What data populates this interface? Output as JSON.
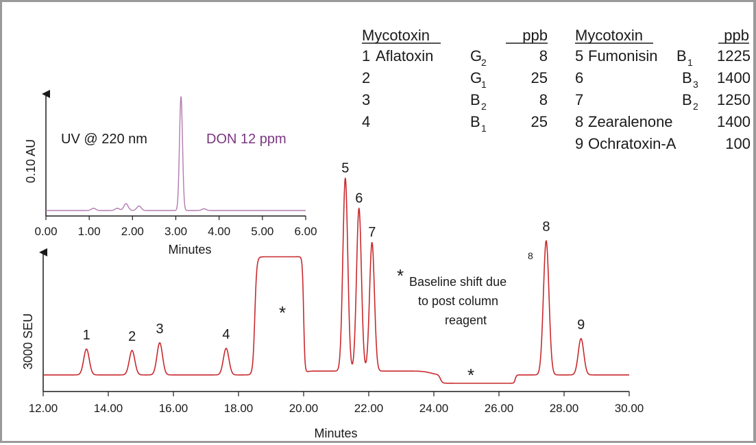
{
  "legend_table": {
    "left": {
      "header_name": "Mycotoxin",
      "header_ppb": "ppb",
      "rows": [
        {
          "num": "1",
          "name": "Aflatoxin",
          "sym": "G",
          "sub": "2",
          "ppb": "8"
        },
        {
          "num": "2",
          "name": "",
          "sym": "G",
          "sub": "1",
          "ppb": "25"
        },
        {
          "num": "3",
          "name": "",
          "sym": "B",
          "sub": "2",
          "ppb": "8"
        },
        {
          "num": "4",
          "name": "",
          "sym": "B",
          "sub": "1",
          "ppb": "25"
        }
      ]
    },
    "right": {
      "header_name": "Mycotoxin",
      "header_ppb": "ppb",
      "rows": [
        {
          "num": "5",
          "name": "Fumonisin",
          "sym": "B",
          "sub": "1",
          "ppb": "1225"
        },
        {
          "num": "6",
          "name": "",
          "sym": "B",
          "sub": "3",
          "ppb": "1400"
        },
        {
          "num": "7",
          "name": "",
          "sym": "B",
          "sub": "2",
          "ppb": "1250"
        },
        {
          "num": "8",
          "name": "Zearalenone",
          "sym": "",
          "sub": "",
          "ppb": "1400"
        },
        {
          "num": "9",
          "name": "Ochratoxin-A",
          "sym": "",
          "sub": "",
          "ppb": "100"
        }
      ]
    }
  },
  "colors": {
    "main_trace": "#c8282c",
    "inset_trace": "#b07ab0",
    "don_label": "#7a3580",
    "axis": "#1a1a1a"
  },
  "chart_data": [
    {
      "type": "line",
      "title": "",
      "xlabel": "Minutes",
      "ylabel": "3000 SEU",
      "xlim": [
        12.0,
        30.0
      ],
      "ylim": [
        0,
        3.1
      ],
      "x_ticks": [
        "12.00",
        "14.00",
        "16.00",
        "18.00",
        "20.00",
        "22.00",
        "24.00",
        "26.00",
        "28.00",
        "30.00"
      ],
      "baseline": 0.12,
      "peaks": [
        {
          "label": "1",
          "rt": 13.33,
          "height": 0.49
        },
        {
          "label": "2",
          "rt": 14.73,
          "height": 0.47
        },
        {
          "label": "3",
          "rt": 15.58,
          "height": 0.58
        },
        {
          "label": "4",
          "rt": 17.62,
          "height": 0.5
        },
        {
          "label": "5",
          "rt": 21.28,
          "height": 2.88
        },
        {
          "label": "6",
          "rt": 21.7,
          "height": 2.45
        },
        {
          "label": "7",
          "rt": 22.1,
          "height": 1.96
        },
        {
          "label": "8",
          "rt": 27.45,
          "height": 2.04
        },
        {
          "label": "9",
          "rt": 28.52,
          "height": 0.64
        }
      ],
      "baseline_shifts": [
        {
          "start": 18.5,
          "end": 20.0,
          "level": 1.69
        },
        {
          "start": 24.2,
          "end": 26.5,
          "level": 0.0
        }
      ],
      "annotations": {
        "asterisk": "*",
        "shift_note_lines": [
          "Baseline shift due",
          "to post column",
          "reagent"
        ],
        "small_label_8": "8"
      }
    },
    {
      "type": "line",
      "title": "",
      "inset_label": "UV @ 220 nm",
      "peak_label": "DON 12 ppm",
      "xlabel": "Minutes",
      "ylabel": "0.10 AU",
      "xlim": [
        0.0,
        6.0
      ],
      "x_ticks": [
        "0.00",
        "1.00",
        "2.00",
        "3.00",
        "4.00",
        "5.00",
        "6.00"
      ],
      "peaks": [
        {
          "rt": 1.1,
          "height": 0.02
        },
        {
          "rt": 1.65,
          "height": 0.02
        },
        {
          "rt": 1.85,
          "height": 0.06
        },
        {
          "rt": 2.15,
          "height": 0.04
        },
        {
          "rt": 3.12,
          "height": 1.0
        },
        {
          "rt": 3.65,
          "height": 0.015
        }
      ]
    }
  ]
}
